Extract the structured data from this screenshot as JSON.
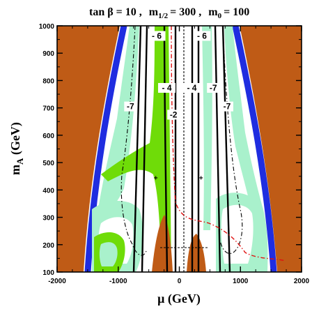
{
  "chart_data": {
    "type": "contour",
    "title_parts": {
      "tanb": "tan β = 10 ,",
      "mhalf_base": "m",
      "mhalf_sub": "1/2",
      "mhalf_val": "= 300 ,",
      "m0_base": "m",
      "m0_sub": "0",
      "m0_val": "= 100"
    },
    "xlabel": "μ (GeV)",
    "ylabel_base": "m",
    "ylabel_sub": "A",
    "ylabel_unit": " (GeV)",
    "xlim": [
      -2000,
      2000
    ],
    "ylim": [
      100,
      1000
    ],
    "xticks": [
      -2000,
      -1000,
      0,
      1000,
      2000
    ],
    "yticks": [
      100,
      200,
      300,
      400,
      500,
      600,
      700,
      800,
      900,
      1000
    ],
    "contour_labels": [
      {
        "text": "- 6",
        "mu": -370,
        "mA": 958
      },
      {
        "text": "- 6",
        "mu": 370,
        "mA": 958
      },
      {
        "text": "- 4",
        "mu": -205,
        "mA": 768
      },
      {
        "text": "- 4",
        "mu": 205,
        "mA": 768
      },
      {
        "text": "-2",
        "mu": -95,
        "mA": 670
      },
      {
        "text": "-7",
        "mu": -800,
        "mA": 700
      },
      {
        "text": "-7",
        "mu": 555,
        "mA": 768
      },
      {
        "text": "-7",
        "mu": 780,
        "mA": 700
      }
    ],
    "markers": [
      {
        "symbol": "+",
        "mu": -385,
        "mA": 445
      },
      {
        "symbol": "+",
        "mu": 355,
        "mA": 445
      }
    ],
    "colors": {
      "excluded": "#bf5b16",
      "boundary": "#1f2de0",
      "green": "#6fdc08",
      "light_green": "#a9f1cc",
      "red_dash": "#e01010"
    }
  }
}
